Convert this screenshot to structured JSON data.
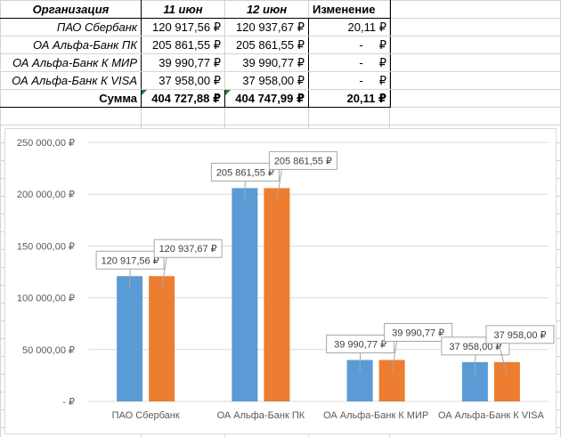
{
  "table": {
    "headers": [
      "Организация",
      "11 июн",
      "12 июн",
      "Изменение"
    ],
    "rows": [
      {
        "org": "ПАО Сбербанк",
        "jun11": "120 917,56 ₽",
        "jun12": "120 937,67 ₽",
        "change": "20,11 ₽"
      },
      {
        "org": "ОА Альфа-Банк ПК",
        "jun11": "205 861,55 ₽",
        "jun12": "205 861,55 ₽",
        "change": "-     ₽"
      },
      {
        "org": "ОА Альфа-Банк К МИР",
        "jun11": "39 990,77 ₽",
        "jun12": "39 990,77 ₽",
        "change": "-     ₽"
      },
      {
        "org": "ОА Альфа-Банк К VISA",
        "jun11": "37 958,00 ₽",
        "jun12": "37 958,00 ₽",
        "change": "-     ₽"
      }
    ],
    "sum": {
      "label": "Сумма",
      "jun11": "404 727,88 ₽",
      "jun12": "404 747,99 ₽",
      "change": "20,11 ₽"
    }
  },
  "chart_data": {
    "type": "bar",
    "categories": [
      "ПАО Сбербанк",
      "ОА Альфа-Банк ПК",
      "ОА Альфа-Банк К МИР",
      "ОА Альфа-Банк К VISA"
    ],
    "series": [
      {
        "name": "11 июн",
        "values": [
          120917.56,
          205861.55,
          39990.77,
          37958.0
        ],
        "labels": [
          "120 917,56 ₽",
          "205 861,55 ₽",
          "39 990,77 ₽",
          "37 958,00 ₽"
        ]
      },
      {
        "name": "12 июн",
        "values": [
          120937.67,
          205861.55,
          39990.77,
          37958.0
        ],
        "labels": [
          "120 937,67 ₽",
          "205 861,55 ₽",
          "39 990,77 ₽",
          "37 958,00 ₽"
        ]
      }
    ],
    "ylim": [
      0,
      250000
    ],
    "yticks": [
      0,
      50000,
      100000,
      150000,
      200000,
      250000
    ],
    "ytick_labels": [
      "-  ₽",
      "50 000,00 ₽",
      "100 000,00 ₽",
      "150 000,00 ₽",
      "200 000,00 ₽",
      "250 000,00 ₽"
    ],
    "colors": [
      "#5b9bd5",
      "#ed7d31"
    ],
    "title": "",
    "xlabel": "",
    "ylabel": ""
  }
}
